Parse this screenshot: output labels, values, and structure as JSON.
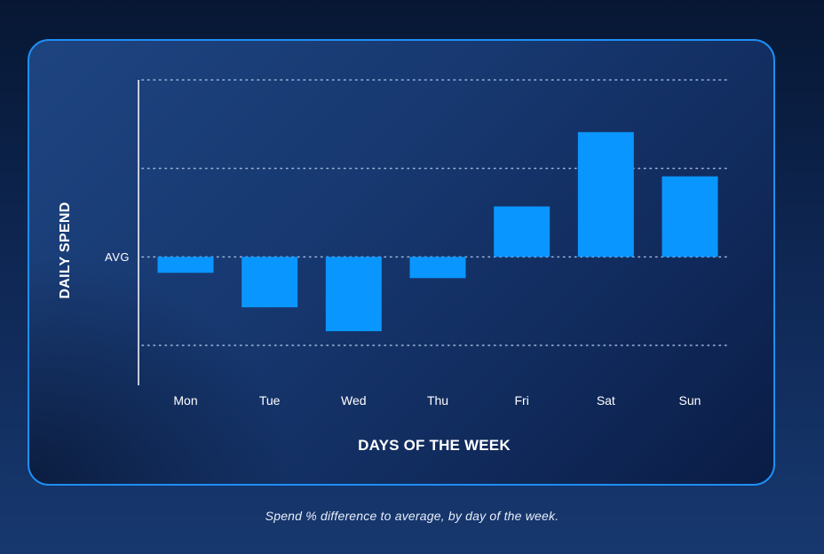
{
  "caption": "Spend % difference to average, by day of the week.",
  "chart_data": {
    "type": "bar",
    "categories": [
      "Mon",
      "Tue",
      "Wed",
      "Thu",
      "Fri",
      "Sat",
      "Sun"
    ],
    "values": [
      -0.18,
      -0.57,
      -0.84,
      -0.24,
      0.57,
      1.41,
      0.91
    ],
    "xlabel": "DAYS OF THE WEEK",
    "ylabel": "DAILY SPEND",
    "baseline_label": "AVG",
    "ylim": [
      -1.0,
      2.0
    ],
    "grid": true,
    "bar_color": "#0a96ff"
  }
}
